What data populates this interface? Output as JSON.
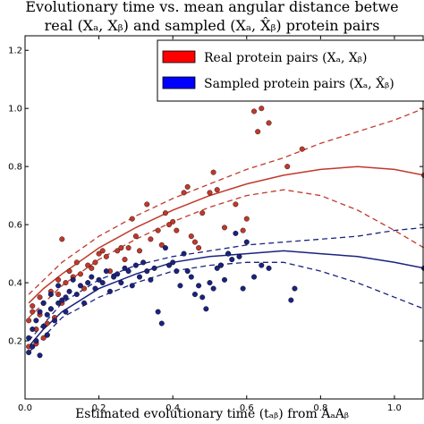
{
  "title_lines": [
    "Evolutionary time vs. mean angular distance betwe",
    "real (Xₐ, Xᵦ) and sampled (Xₐ, X̂ᵦ) protein pairs"
  ],
  "chart_data": {
    "type": "scatter",
    "xlabel": "Estimated evolutionary time (tₐᵦ) from AₐAᵦ",
    "ylabel": "",
    "xlim": [
      0.0,
      1.08
    ],
    "ylim": [
      0.0,
      1.25
    ],
    "xticks": [
      "0.0",
      "0.2",
      "0.4",
      "0.6",
      "0.8",
      "1.0"
    ],
    "yticks": [
      "0.2",
      "0.4",
      "0.6",
      "0.8",
      "1.0",
      "1.2"
    ],
    "legend_position": "top-right",
    "legend": [
      {
        "label": "Real protein pairs (Xₐ, Xᵦ)",
        "color": "#ff0000"
      },
      {
        "label": "Sampled protein pairs (Xₐ, X̂ᵦ)",
        "color": "#0000ff"
      }
    ],
    "series": [
      {
        "name": "Real protein pairs (Xₐ, Xᵦ)",
        "color": "#c0392b",
        "points": [
          [
            0.01,
            0.18
          ],
          [
            0.01,
            0.27
          ],
          [
            0.02,
            0.3
          ],
          [
            0.02,
            0.32
          ],
          [
            0.03,
            0.19
          ],
          [
            0.03,
            0.24
          ],
          [
            0.04,
            0.29
          ],
          [
            0.04,
            0.35
          ],
          [
            0.05,
            0.21
          ],
          [
            0.05,
            0.33
          ],
          [
            0.06,
            0.22
          ],
          [
            0.06,
            0.26
          ],
          [
            0.07,
            0.31
          ],
          [
            0.07,
            0.37
          ],
          [
            0.08,
            0.28
          ],
          [
            0.09,
            0.41
          ],
          [
            0.09,
            0.36
          ],
          [
            0.1,
            0.55
          ],
          [
            0.1,
            0.33
          ],
          [
            0.11,
            0.4
          ],
          [
            0.12,
            0.44
          ],
          [
            0.13,
            0.42
          ],
          [
            0.14,
            0.47
          ],
          [
            0.15,
            0.43
          ],
          [
            0.16,
            0.38
          ],
          [
            0.17,
            0.46
          ],
          [
            0.18,
            0.45
          ],
          [
            0.19,
            0.47
          ],
          [
            0.2,
            0.5
          ],
          [
            0.21,
            0.51
          ],
          [
            0.22,
            0.49
          ],
          [
            0.23,
            0.44
          ],
          [
            0.25,
            0.51
          ],
          [
            0.26,
            0.52
          ],
          [
            0.27,
            0.48
          ],
          [
            0.28,
            0.52
          ],
          [
            0.29,
            0.62
          ],
          [
            0.3,
            0.56
          ],
          [
            0.31,
            0.51
          ],
          [
            0.33,
            0.67
          ],
          [
            0.34,
            0.55
          ],
          [
            0.36,
            0.58
          ],
          [
            0.37,
            0.53
          ],
          [
            0.38,
            0.64
          ],
          [
            0.39,
            0.6
          ],
          [
            0.4,
            0.61
          ],
          [
            0.41,
            0.58
          ],
          [
            0.43,
            0.71
          ],
          [
            0.44,
            0.73
          ],
          [
            0.45,
            0.56
          ],
          [
            0.46,
            0.54
          ],
          [
            0.47,
            0.52
          ],
          [
            0.48,
            0.64
          ],
          [
            0.5,
            0.71
          ],
          [
            0.51,
            0.78
          ],
          [
            0.52,
            0.72
          ],
          [
            0.53,
            0.46
          ],
          [
            0.54,
            0.59
          ],
          [
            0.55,
            0.5
          ],
          [
            0.57,
            0.67
          ],
          [
            0.59,
            0.58
          ],
          [
            0.6,
            0.62
          ],
          [
            0.62,
            0.99
          ],
          [
            0.63,
            0.92
          ],
          [
            0.64,
            1.0
          ],
          [
            0.66,
            0.95
          ],
          [
            0.71,
            0.8
          ],
          [
            0.75,
            0.86
          ],
          [
            1.08,
            0.77
          ]
        ],
        "fit": [
          [
            0.01,
            0.33
          ],
          [
            0.05,
            0.38
          ],
          [
            0.1,
            0.43
          ],
          [
            0.2,
            0.52
          ],
          [
            0.3,
            0.59
          ],
          [
            0.4,
            0.65
          ],
          [
            0.5,
            0.7
          ],
          [
            0.6,
            0.74
          ],
          [
            0.7,
            0.77
          ],
          [
            0.8,
            0.79
          ],
          [
            0.9,
            0.8
          ],
          [
            1.0,
            0.79
          ],
          [
            1.08,
            0.77
          ]
        ],
        "upper": [
          [
            0.01,
            0.36
          ],
          [
            0.1,
            0.47
          ],
          [
            0.2,
            0.56
          ],
          [
            0.3,
            0.63
          ],
          [
            0.4,
            0.69
          ],
          [
            0.5,
            0.74
          ],
          [
            0.6,
            0.79
          ],
          [
            0.7,
            0.83
          ],
          [
            0.8,
            0.88
          ],
          [
            0.9,
            0.92
          ],
          [
            1.0,
            0.96
          ],
          [
            1.08,
            1.0
          ]
        ],
        "lower": [
          [
            0.01,
            0.28
          ],
          [
            0.1,
            0.39
          ],
          [
            0.2,
            0.48
          ],
          [
            0.3,
            0.55
          ],
          [
            0.4,
            0.61
          ],
          [
            0.5,
            0.66
          ],
          [
            0.6,
            0.7
          ],
          [
            0.7,
            0.72
          ],
          [
            0.8,
            0.7
          ],
          [
            0.9,
            0.65
          ],
          [
            1.0,
            0.58
          ],
          [
            1.08,
            0.52
          ]
        ]
      },
      {
        "name": "Sampled protein pairs (Xₐ, X̂ᵦ)",
        "color": "#1a237e",
        "points": [
          [
            0.01,
            0.16
          ],
          [
            0.01,
            0.21
          ],
          [
            0.02,
            0.18
          ],
          [
            0.02,
            0.24
          ],
          [
            0.03,
            0.2
          ],
          [
            0.03,
            0.27
          ],
          [
            0.04,
            0.15
          ],
          [
            0.04,
            0.3
          ],
          [
            0.05,
            0.25
          ],
          [
            0.05,
            0.33
          ],
          [
            0.06,
            0.22
          ],
          [
            0.06,
            0.29
          ],
          [
            0.07,
            0.36
          ],
          [
            0.07,
            0.31
          ],
          [
            0.08,
            0.27
          ],
          [
            0.09,
            0.39
          ],
          [
            0.09,
            0.33
          ],
          [
            0.1,
            0.34
          ],
          [
            0.11,
            0.3
          ],
          [
            0.11,
            0.35
          ],
          [
            0.12,
            0.37
          ],
          [
            0.13,
            0.41
          ],
          [
            0.14,
            0.36
          ],
          [
            0.15,
            0.39
          ],
          [
            0.16,
            0.33
          ],
          [
            0.17,
            0.4
          ],
          [
            0.18,
            0.42
          ],
          [
            0.19,
            0.38
          ],
          [
            0.2,
            0.41
          ],
          [
            0.21,
            0.4
          ],
          [
            0.22,
            0.44
          ],
          [
            0.23,
            0.37
          ],
          [
            0.24,
            0.42
          ],
          [
            0.25,
            0.43
          ],
          [
            0.26,
            0.4
          ],
          [
            0.27,
            0.45
          ],
          [
            0.28,
            0.44
          ],
          [
            0.29,
            0.39
          ],
          [
            0.3,
            0.46
          ],
          [
            0.31,
            0.42
          ],
          [
            0.32,
            0.47
          ],
          [
            0.33,
            0.44
          ],
          [
            0.34,
            0.41
          ],
          [
            0.35,
            0.45
          ],
          [
            0.36,
            0.3
          ],
          [
            0.37,
            0.26
          ],
          [
            0.38,
            0.52
          ],
          [
            0.39,
            0.46
          ],
          [
            0.4,
            0.47
          ],
          [
            0.41,
            0.44
          ],
          [
            0.42,
            0.39
          ],
          [
            0.43,
            0.5
          ],
          [
            0.44,
            0.44
          ],
          [
            0.45,
            0.42
          ],
          [
            0.46,
            0.36
          ],
          [
            0.47,
            0.39
          ],
          [
            0.48,
            0.35
          ],
          [
            0.49,
            0.31
          ],
          [
            0.5,
            0.4
          ],
          [
            0.51,
            0.38
          ],
          [
            0.52,
            0.45
          ],
          [
            0.53,
            0.46
          ],
          [
            0.54,
            0.41
          ],
          [
            0.55,
            0.5
          ],
          [
            0.56,
            0.48
          ],
          [
            0.57,
            0.57
          ],
          [
            0.58,
            0.49
          ],
          [
            0.59,
            0.38
          ],
          [
            0.6,
            0.54
          ],
          [
            0.62,
            0.42
          ],
          [
            0.64,
            0.46
          ],
          [
            0.66,
            0.45
          ],
          [
            0.72,
            0.34
          ],
          [
            0.73,
            0.38
          ],
          [
            1.08,
            0.45
          ]
        ],
        "fit": [
          [
            0.01,
            0.18
          ],
          [
            0.05,
            0.24
          ],
          [
            0.1,
            0.3
          ],
          [
            0.2,
            0.38
          ],
          [
            0.3,
            0.43
          ],
          [
            0.4,
            0.47
          ],
          [
            0.5,
            0.49
          ],
          [
            0.6,
            0.5
          ],
          [
            0.7,
            0.51
          ],
          [
            0.8,
            0.5
          ],
          [
            0.9,
            0.49
          ],
          [
            1.0,
            0.47
          ],
          [
            1.08,
            0.45
          ]
        ],
        "upper": [
          [
            0.01,
            0.2
          ],
          [
            0.1,
            0.33
          ],
          [
            0.2,
            0.41
          ],
          [
            0.3,
            0.46
          ],
          [
            0.4,
            0.49
          ],
          [
            0.5,
            0.51
          ],
          [
            0.6,
            0.53
          ],
          [
            0.7,
            0.54
          ],
          [
            0.8,
            0.55
          ],
          [
            0.9,
            0.56
          ],
          [
            1.0,
            0.58
          ],
          [
            1.08,
            0.59
          ]
        ],
        "lower": [
          [
            0.01,
            0.16
          ],
          [
            0.1,
            0.28
          ],
          [
            0.2,
            0.35
          ],
          [
            0.3,
            0.4
          ],
          [
            0.4,
            0.44
          ],
          [
            0.5,
            0.46
          ],
          [
            0.6,
            0.47
          ],
          [
            0.7,
            0.47
          ],
          [
            0.8,
            0.44
          ],
          [
            0.9,
            0.4
          ],
          [
            1.0,
            0.35
          ],
          [
            1.08,
            0.31
          ]
        ]
      }
    ]
  }
}
